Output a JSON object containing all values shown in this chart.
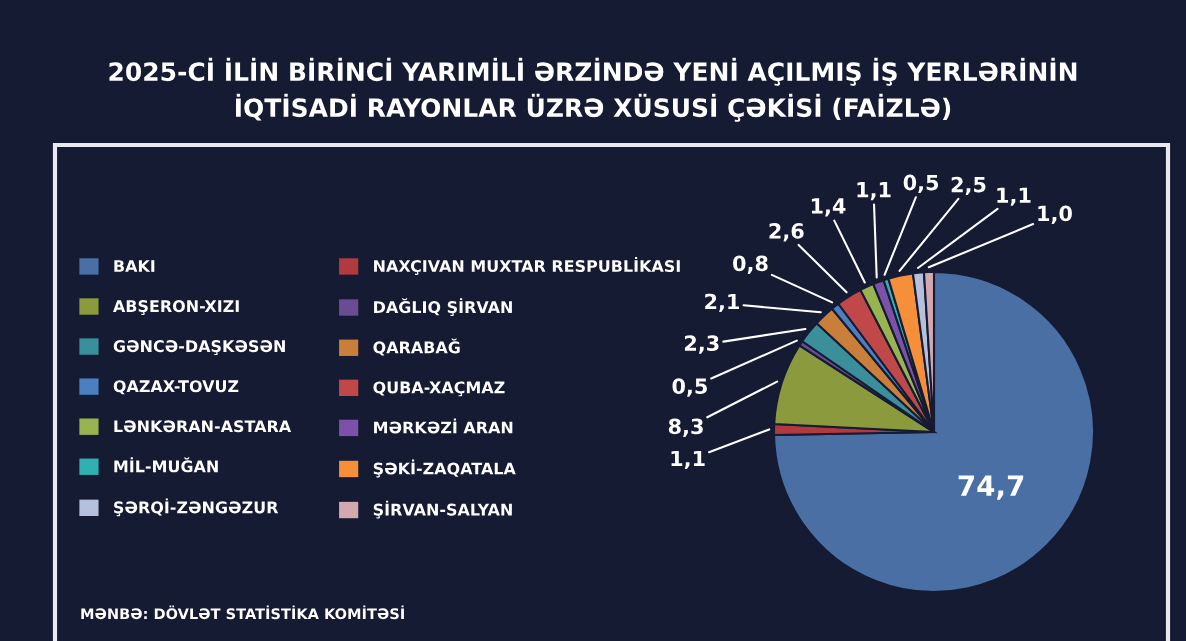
{
  "chart_data": {
    "type": "pie",
    "title": "2025-Cİ İLİN BİRİNCİ YARIMİLİ ƏRZİNDƏ YENİ AÇILMIŞ İŞ YERLƏRİNİN\nİQTİSADİ RAYONLAR ÜZRƏ XÜSUSİ ÇƏKİSİ (FAİZLƏ)",
    "categories": [
      "BAKI",
      "NAXÇIVAN MUXTAR RESPUBLİKASI",
      "ABŞERON-XIZI",
      "DAĞLIQ ŞİRVAN",
      "GƏNCƏ-DAŞKƏSƏN",
      "QARABAĞ",
      "QAZAX-TOVUZ",
      "QUBA-XAÇMAZ",
      "LƏNKƏRAN-ASTARA",
      "MƏRKƏZİ ARAN",
      "MİL-MUĞAN",
      "ŞƏKİ-ZAQATALA",
      "ŞƏRQİ-ZƏNGƏZUR",
      "ŞİRVAN-SALYAN"
    ],
    "values": [
      74.7,
      1.1,
      8.3,
      0.5,
      2.3,
      2.1,
      0.8,
      2.6,
      1.4,
      1.1,
      0.5,
      2.5,
      1.1,
      1.0
    ],
    "value_labels": [
      "74,7",
      "1,1",
      "8,3",
      "0,5",
      "2,3",
      "2,1",
      "0,8",
      "2,6",
      "1,4",
      "1,1",
      "0,5",
      "2,5",
      "1,1",
      "1,0"
    ],
    "colors": [
      "#4a6fa5",
      "#b03a3e",
      "#8a9a3c",
      "#6a4c93",
      "#3a8f9a",
      "#c97f3a",
      "#4a80c0",
      "#c04848",
      "#98b450",
      "#7b52a8",
      "#30b0b0",
      "#f58f3a",
      "#b4c0dc",
      "#d4a8b0"
    ],
    "legend": "left",
    "annotations": [
      "MƏNBƏ: DÖVLƏT STATİSTİKA KOMİTƏSİ"
    ]
  }
}
